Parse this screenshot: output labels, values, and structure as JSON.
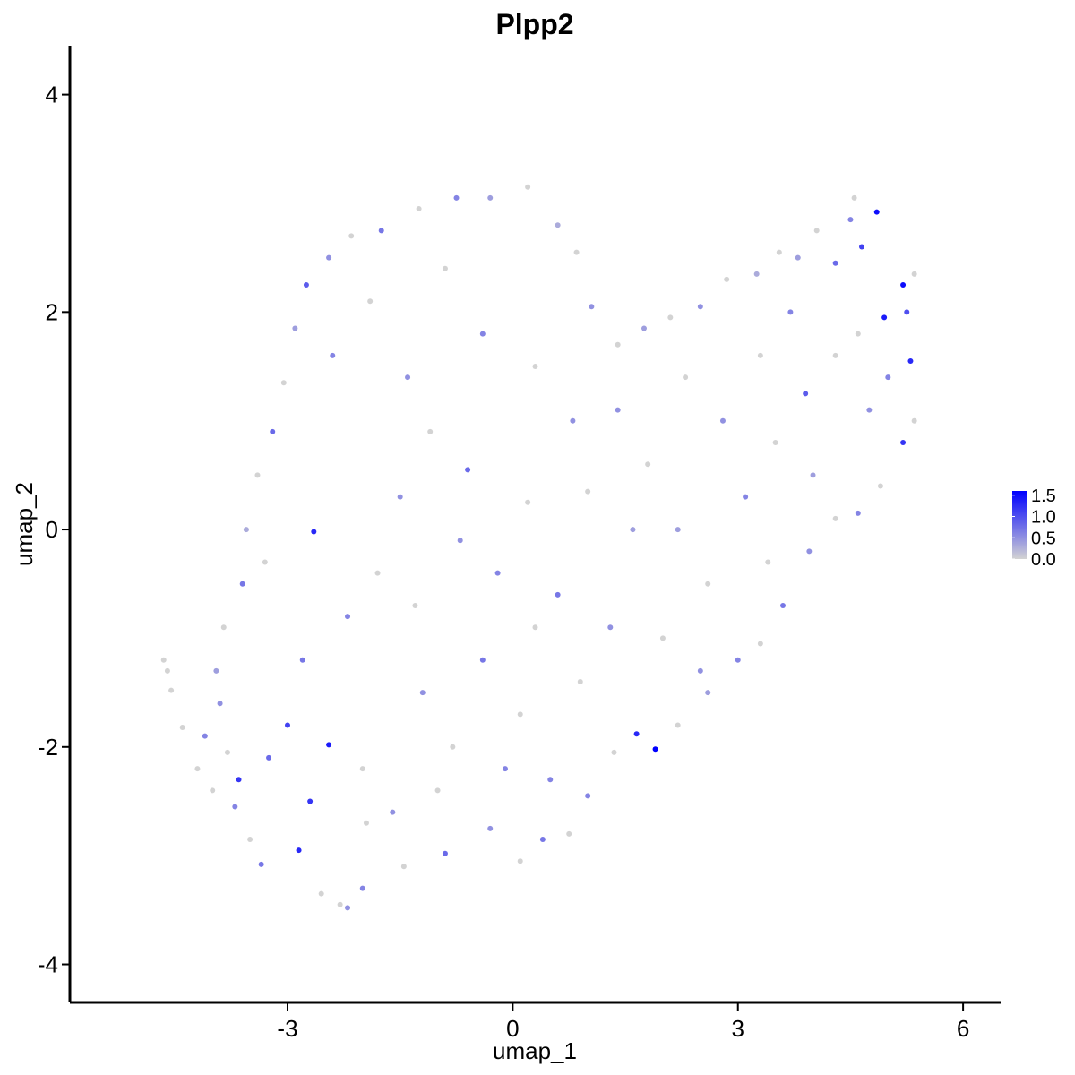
{
  "chart_data": {
    "type": "scatter",
    "title": "Plpp2",
    "xlabel": "umap_1",
    "ylabel": "umap_2",
    "xlim": [
      -5.9,
      6.5
    ],
    "ylim": [
      -4.35,
      4.45
    ],
    "x_ticks": [
      -3,
      0,
      3,
      6
    ],
    "y_ticks": [
      -4,
      -2,
      0,
      2,
      4
    ],
    "x_tick_labels": [
      "-3",
      "0",
      "3",
      "6"
    ],
    "y_tick_labels": [
      "-4",
      "-2",
      "0",
      "2",
      "4"
    ],
    "grid": false,
    "legend": {
      "placement": "right",
      "type": "colorbar",
      "range": [
        0,
        1.6
      ],
      "ticks": [
        0.0,
        0.5,
        1.0,
        1.5
      ],
      "tick_labels": [
        "0.0",
        "0.5",
        "1.0",
        "1.5"
      ]
    },
    "color_low": "#d3d3d3",
    "color_high": "#0000ff",
    "expression_range": [
      0,
      1.6
    ],
    "points": [
      {
        "x": -4.6,
        "y": -1.3,
        "v": 0
      },
      {
        "x": -4.65,
        "y": -1.2,
        "v": 0
      },
      {
        "x": -4.55,
        "y": -1.48,
        "v": 0
      },
      {
        "x": -4.4,
        "y": -1.82,
        "v": 0
      },
      {
        "x": -4.1,
        "y": -1.9,
        "v": 0.6
      },
      {
        "x": -4.2,
        "y": -2.2,
        "v": 0
      },
      {
        "x": -4.0,
        "y": -2.4,
        "v": 0
      },
      {
        "x": -3.9,
        "y": -1.6,
        "v": 0.5
      },
      {
        "x": -3.8,
        "y": -2.05,
        "v": 0
      },
      {
        "x": -3.65,
        "y": -2.3,
        "v": 1.2
      },
      {
        "x": -3.7,
        "y": -2.55,
        "v": 0.6
      },
      {
        "x": -3.5,
        "y": -2.85,
        "v": 0
      },
      {
        "x": -3.35,
        "y": -3.08,
        "v": 0.7
      },
      {
        "x": -3.25,
        "y": -2.1,
        "v": 0.8
      },
      {
        "x": -3.0,
        "y": -1.8,
        "v": 1.1
      },
      {
        "x": -2.85,
        "y": -2.95,
        "v": 1.3
      },
      {
        "x": -2.7,
        "y": -2.5,
        "v": 1.2
      },
      {
        "x": -2.55,
        "y": -3.35,
        "v": 0
      },
      {
        "x": -2.45,
        "y": -1.98,
        "v": 1.4
      },
      {
        "x": -2.3,
        "y": -3.45,
        "v": 0
      },
      {
        "x": -2.2,
        "y": -3.48,
        "v": 0.5
      },
      {
        "x": -2.0,
        "y": -3.3,
        "v": 0.6
      },
      {
        "x": -1.95,
        "y": -2.7,
        "v": 0
      },
      {
        "x": -1.45,
        "y": -3.1,
        "v": 0
      },
      {
        "x": -0.9,
        "y": -2.98,
        "v": 0.8
      },
      {
        "x": -0.3,
        "y": -2.75,
        "v": 0.5
      },
      {
        "x": 0.1,
        "y": -3.05,
        "v": 0
      },
      {
        "x": 0.4,
        "y": -2.85,
        "v": 0.7
      },
      {
        "x": 0.75,
        "y": -2.8,
        "v": 0
      },
      {
        "x": 1.0,
        "y": -2.45,
        "v": 0.6
      },
      {
        "x": 1.35,
        "y": -2.05,
        "v": 0
      },
      {
        "x": 1.65,
        "y": -1.88,
        "v": 1.3
      },
      {
        "x": 1.9,
        "y": -2.02,
        "v": 1.6
      },
      {
        "x": 2.2,
        "y": -1.8,
        "v": 0
      },
      {
        "x": 2.6,
        "y": -1.5,
        "v": 0.4
      },
      {
        "x": 3.0,
        "y": -1.2,
        "v": 0.6
      },
      {
        "x": 3.3,
        "y": -1.05,
        "v": 0
      },
      {
        "x": 3.6,
        "y": -0.7,
        "v": 0.7
      },
      {
        "x": 3.95,
        "y": -0.2,
        "v": 0.5
      },
      {
        "x": 4.3,
        "y": 0.1,
        "v": 0
      },
      {
        "x": 4.6,
        "y": 0.15,
        "v": 0.6
      },
      {
        "x": 4.9,
        "y": 0.4,
        "v": 0
      },
      {
        "x": 5.2,
        "y": 0.8,
        "v": 1.2
      },
      {
        "x": 5.35,
        "y": 1.0,
        "v": 0
      },
      {
        "x": 5.3,
        "y": 1.55,
        "v": 1.3
      },
      {
        "x": 5.25,
        "y": 2.0,
        "v": 1.0
      },
      {
        "x": 5.35,
        "y": 2.35,
        "v": 0
      },
      {
        "x": 5.2,
        "y": 2.25,
        "v": 1.5
      },
      {
        "x": 4.95,
        "y": 1.95,
        "v": 1.4
      },
      {
        "x": 4.85,
        "y": 2.92,
        "v": 1.5
      },
      {
        "x": 4.65,
        "y": 2.6,
        "v": 1.1
      },
      {
        "x": 4.55,
        "y": 3.05,
        "v": 0
      },
      {
        "x": 4.5,
        "y": 2.85,
        "v": 0.6
      },
      {
        "x": 4.3,
        "y": 2.45,
        "v": 0.8
      },
      {
        "x": 4.05,
        "y": 2.75,
        "v": 0
      },
      {
        "x": 3.8,
        "y": 2.5,
        "v": 0.4
      },
      {
        "x": 3.55,
        "y": 2.55,
        "v": 0
      },
      {
        "x": 3.25,
        "y": 2.35,
        "v": 0.3
      },
      {
        "x": 2.85,
        "y": 2.3,
        "v": 0
      },
      {
        "x": 2.5,
        "y": 2.05,
        "v": 0.5
      },
      {
        "x": 2.1,
        "y": 1.95,
        "v": 0
      },
      {
        "x": 1.75,
        "y": 1.85,
        "v": 0.4
      },
      {
        "x": 1.4,
        "y": 1.7,
        "v": 0
      },
      {
        "x": 1.05,
        "y": 2.05,
        "v": 0.5
      },
      {
        "x": 0.85,
        "y": 2.55,
        "v": 0
      },
      {
        "x": 0.6,
        "y": 2.8,
        "v": 0.3
      },
      {
        "x": 0.2,
        "y": 3.15,
        "v": 0
      },
      {
        "x": -0.3,
        "y": 3.05,
        "v": 0.4
      },
      {
        "x": -0.75,
        "y": 3.05,
        "v": 0.6
      },
      {
        "x": -1.25,
        "y": 2.95,
        "v": 0
      },
      {
        "x": -1.75,
        "y": 2.75,
        "v": 0.7
      },
      {
        "x": -2.15,
        "y": 2.7,
        "v": 0
      },
      {
        "x": -2.45,
        "y": 2.5,
        "v": 0.5
      },
      {
        "x": -2.75,
        "y": 2.25,
        "v": 0.9
      },
      {
        "x": -2.9,
        "y": 1.85,
        "v": 0.4
      },
      {
        "x": -3.05,
        "y": 1.35,
        "v": 0
      },
      {
        "x": -3.2,
        "y": 0.9,
        "v": 0.8
      },
      {
        "x": -3.4,
        "y": 0.5,
        "v": 0
      },
      {
        "x": -3.55,
        "y": 0.0,
        "v": 0.3
      },
      {
        "x": -3.6,
        "y": -0.5,
        "v": 0.7
      },
      {
        "x": -3.85,
        "y": -0.9,
        "v": 0
      },
      {
        "x": -3.95,
        "y": -1.3,
        "v": 0.4
      },
      {
        "x": -2.65,
        "y": -0.02,
        "v": 1.3
      },
      {
        "x": -2.2,
        "y": -0.8,
        "v": 0.6
      },
      {
        "x": -1.8,
        "y": -0.4,
        "v": 0
      },
      {
        "x": -1.5,
        "y": 0.3,
        "v": 0.5
      },
      {
        "x": -1.1,
        "y": 0.9,
        "v": 0
      },
      {
        "x": -0.6,
        "y": 0.55,
        "v": 0.8
      },
      {
        "x": -0.2,
        "y": -0.4,
        "v": 0.6
      },
      {
        "x": 0.2,
        "y": 0.25,
        "v": 0
      },
      {
        "x": 0.6,
        "y": -0.6,
        "v": 0.7
      },
      {
        "x": 1.0,
        "y": 0.35,
        "v": 0
      },
      {
        "x": 1.4,
        "y": 1.1,
        "v": 0.5
      },
      {
        "x": 1.8,
        "y": 0.6,
        "v": 0
      },
      {
        "x": 2.2,
        "y": 0.0,
        "v": 0.4
      },
      {
        "x": 2.6,
        "y": -0.5,
        "v": 0
      },
      {
        "x": 3.1,
        "y": 0.3,
        "v": 0.6
      },
      {
        "x": 3.5,
        "y": 0.8,
        "v": 0
      },
      {
        "x": 3.9,
        "y": 1.25,
        "v": 0.9
      },
      {
        "x": 4.3,
        "y": 1.6,
        "v": 0
      },
      {
        "x": 4.75,
        "y": 1.1,
        "v": 0.5
      },
      {
        "x": -1.2,
        "y": -1.5,
        "v": 0.5
      },
      {
        "x": -0.8,
        "y": -2.0,
        "v": 0
      },
      {
        "x": -0.4,
        "y": -1.2,
        "v": 0.7
      },
      {
        "x": 0.1,
        "y": -1.7,
        "v": 0
      },
      {
        "x": 0.5,
        "y": -2.3,
        "v": 0.6
      },
      {
        "x": 0.9,
        "y": -1.4,
        "v": 0
      },
      {
        "x": 1.3,
        "y": -0.9,
        "v": 0.5
      },
      {
        "x": -2.8,
        "y": -1.2,
        "v": 0.7
      },
      {
        "x": -3.3,
        "y": -0.3,
        "v": 0
      },
      {
        "x": -2.4,
        "y": 1.6,
        "v": 0.6
      },
      {
        "x": -1.9,
        "y": 2.1,
        "v": 0
      },
      {
        "x": -1.4,
        "y": 1.4,
        "v": 0.5
      },
      {
        "x": -0.9,
        "y": 2.4,
        "v": 0
      },
      {
        "x": -0.4,
        "y": 1.8,
        "v": 0.6
      },
      {
        "x": 0.3,
        "y": 1.5,
        "v": 0
      },
      {
        "x": 0.8,
        "y": 1.0,
        "v": 0.5
      },
      {
        "x": 2.3,
        "y": 1.4,
        "v": 0
      },
      {
        "x": 2.8,
        "y": 1.0,
        "v": 0.5
      },
      {
        "x": 3.3,
        "y": 1.6,
        "v": 0
      },
      {
        "x": 3.7,
        "y": 2.0,
        "v": 0.6
      },
      {
        "x": -2.0,
        "y": -2.2,
        "v": 0
      },
      {
        "x": -1.6,
        "y": -2.6,
        "v": 0.5
      },
      {
        "x": -1.0,
        "y": -2.4,
        "v": 0
      },
      {
        "x": -0.1,
        "y": -2.2,
        "v": 0.6
      },
      {
        "x": 0.3,
        "y": -0.9,
        "v": 0
      },
      {
        "x": -0.7,
        "y": -0.1,
        "v": 0.5
      },
      {
        "x": -1.3,
        "y": -0.7,
        "v": 0
      },
      {
        "x": 1.6,
        "y": 0.0,
        "v": 0.4
      },
      {
        "x": 2.0,
        "y": -1.0,
        "v": 0
      },
      {
        "x": 2.5,
        "y": -1.3,
        "v": 0.5
      },
      {
        "x": 3.4,
        "y": -0.3,
        "v": 0
      },
      {
        "x": 4.0,
        "y": 0.5,
        "v": 0.4
      },
      {
        "x": 4.6,
        "y": 1.8,
        "v": 0
      },
      {
        "x": 5.0,
        "y": 1.4,
        "v": 0.6
      }
    ]
  }
}
